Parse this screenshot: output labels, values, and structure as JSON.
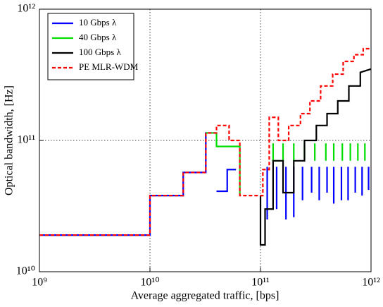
{
  "chart_data": {
    "type": "line",
    "xlabel": "Average aggregated traffic, [bps]",
    "ylabel": "Optical bandwidth, [Hz]",
    "xscale": "log",
    "yscale": "log",
    "xlim": [
      1000000000.0,
      1000000000000.0
    ],
    "ylim": [
      10000000000.0,
      1000000000000.0
    ],
    "xticks": [
      {
        "value": 1000000000.0,
        "label": "10⁹"
      },
      {
        "value": 10000000000.0,
        "label": "10¹⁰"
      },
      {
        "value": 100000000000.0,
        "label": "10¹¹"
      },
      {
        "value": 1000000000000.0,
        "label": "10¹²"
      }
    ],
    "yticks": [
      {
        "value": 10000000000.0,
        "label": "10¹⁰"
      },
      {
        "value": 100000000000.0,
        "label": "10¹¹"
      },
      {
        "value": 1000000000000.0,
        "label": "10¹²"
      }
    ],
    "grid": true,
    "legend_loc": "upper left",
    "series": [
      {
        "name": "10 Gbps λ",
        "color": "#0000ff",
        "linestyle": "solid",
        "x": [
          1000000000.0,
          10000000000.0,
          10000000000.0,
          20000000000.0,
          20000000000.0,
          32000000000.0,
          32000000000.0,
          40000000000.0,
          null,
          40000000000.0,
          50000000000.0,
          50000000000.0,
          60000000000.0,
          null,
          115000000000.0,
          115000000000.0,
          null,
          140000000000.0,
          140000000000.0,
          null,
          170000000000.0,
          170000000000.0,
          null,
          200000000000.0,
          200000000000.0,
          null,
          240000000000.0,
          240000000000.0,
          null,
          290000000000.0,
          290000000000.0,
          null,
          340000000000.0,
          340000000000.0,
          null,
          400000000000.0,
          400000000000.0,
          null,
          460000000000.0,
          460000000000.0,
          null,
          540000000000.0,
          540000000000.0,
          null,
          620000000000.0,
          620000000000.0,
          null,
          720000000000.0,
          720000000000.0,
          null,
          830000000000.0,
          830000000000.0,
          null,
          950000000000.0,
          950000000000.0
        ],
        "values": [
          19000000000.0,
          19000000000.0,
          38000000000.0,
          38000000000.0,
          57000000000.0,
          57000000000.0,
          114000000000.0,
          114000000000.0,
          null,
          41000000000.0,
          41000000000.0,
          60000000000.0,
          60000000000.0,
          null,
          63000000000.0,
          25000000000.0,
          null,
          63000000000.0,
          30000000000.0,
          null,
          63000000000.0,
          25000000000.0,
          null,
          63000000000.0,
          26000000000.0,
          null,
          63000000000.0,
          35000000000.0,
          null,
          63000000000.0,
          40000000000.0,
          null,
          63000000000.0,
          35000000000.0,
          null,
          63000000000.0,
          40000000000.0,
          null,
          63000000000.0,
          33000000000.0,
          null,
          63000000000.0,
          35000000000.0,
          null,
          63000000000.0,
          35000000000.0,
          null,
          63000000000.0,
          40000000000.0,
          null,
          63000000000.0,
          38000000000.0,
          null,
          63000000000.0,
          42000000000.0
        ]
      },
      {
        "name": "40 Gbps λ",
        "color": "#00dd00",
        "linestyle": "solid",
        "x": [
          32000000000.0,
          40000000000.0,
          40000000000.0,
          65000000000.0,
          65000000000.0,
          null,
          130000000000.0,
          130000000000.0,
          150000000000.0,
          null,
          160000000000.0,
          160000000000.0,
          null,
          200000000000.0,
          200000000000.0,
          null,
          250000000000.0,
          250000000000.0,
          null,
          310000000000.0,
          310000000000.0,
          null,
          390000000000.0,
          390000000000.0,
          null,
          460000000000.0,
          460000000000.0,
          null,
          550000000000.0,
          550000000000.0,
          null,
          650000000000.0,
          650000000000.0,
          null,
          760000000000.0,
          760000000000.0,
          null,
          880000000000.0,
          880000000000.0
        ],
        "values": [
          114000000000.0,
          114000000000.0,
          90000000000.0,
          90000000000.0,
          38000000000.0,
          null,
          95000000000.0,
          70000000000.0,
          70000000000.0,
          null,
          95000000000.0,
          70000000000.0,
          null,
          95000000000.0,
          70000000000.0,
          null,
          95000000000.0,
          70000000000.0,
          null,
          95000000000.0,
          70000000000.0,
          null,
          95000000000.0,
          70000000000.0,
          null,
          95000000000.0,
          70000000000.0,
          null,
          95000000000.0,
          70000000000.0,
          null,
          95000000000.0,
          70000000000.0,
          null,
          95000000000.0,
          70000000000.0,
          null,
          95000000000.0,
          70000000000.0
        ]
      },
      {
        "name": "100 Gbps λ",
        "color": "#000000",
        "linestyle": "solid",
        "x": [
          100000000000.0,
          100000000000.0,
          110000000000.0,
          110000000000.0,
          130000000000.0,
          130000000000.0,
          160000000000.0,
          160000000000.0,
          200000000000.0,
          200000000000.0,
          250000000000.0,
          250000000000.0,
          320000000000.0,
          320000000000.0,
          400000000000.0,
          400000000000.0,
          500000000000.0,
          500000000000.0,
          630000000000.0,
          630000000000.0,
          800000000000.0,
          800000000000.0,
          1000000000000.0
        ],
        "values": [
          38000000000.0,
          16000000000.0,
          16000000000.0,
          30000000000.0,
          30000000000.0,
          70000000000.0,
          70000000000.0,
          40000000000.0,
          40000000000.0,
          70000000000.0,
          70000000000.0,
          100000000000.0,
          100000000000.0,
          130000000000.0,
          130000000000.0,
          160000000000.0,
          160000000000.0,
          200000000000.0,
          200000000000.0,
          260000000000.0,
          260000000000.0,
          330000000000.0,
          350000000000.0
        ]
      },
      {
        "name": "PE MLR-WDM",
        "color": "#ff0000",
        "linestyle": "dashed",
        "x": [
          1000000000.0,
          10000000000.0,
          10000000000.0,
          20000000000.0,
          20000000000.0,
          32000000000.0,
          32000000000.0,
          40000000000.0,
          40000000000.0,
          52000000000.0,
          52000000000.0,
          65000000000.0,
          65000000000.0,
          105000000000.0,
          105000000000.0,
          120000000000.0,
          120000000000.0,
          145000000000.0,
          145000000000.0,
          180000000000.0,
          180000000000.0,
          230000000000.0,
          230000000000.0,
          280000000000.0,
          280000000000.0,
          350000000000.0,
          350000000000.0,
          450000000000.0,
          450000000000.0,
          560000000000.0,
          560000000000.0,
          700000000000.0,
          700000000000.0,
          850000000000.0,
          850000000000.0,
          1000000000000.0
        ],
        "values": [
          19000000000.0,
          19000000000.0,
          38000000000.0,
          38000000000.0,
          57000000000.0,
          57000000000.0,
          114000000000.0,
          114000000000.0,
          130000000000.0,
          130000000000.0,
          100000000000.0,
          100000000000.0,
          38000000000.0,
          38000000000.0,
          60000000000.0,
          60000000000.0,
          150000000000.0,
          150000000000.0,
          100000000000.0,
          100000000000.0,
          130000000000.0,
          130000000000.0,
          160000000000.0,
          160000000000.0,
          200000000000.0,
          200000000000.0,
          260000000000.0,
          260000000000.0,
          320000000000.0,
          320000000000.0,
          400000000000.0,
          400000000000.0,
          450000000000.0,
          450000000000.0,
          500000000000.0,
          500000000000.0
        ]
      }
    ]
  }
}
